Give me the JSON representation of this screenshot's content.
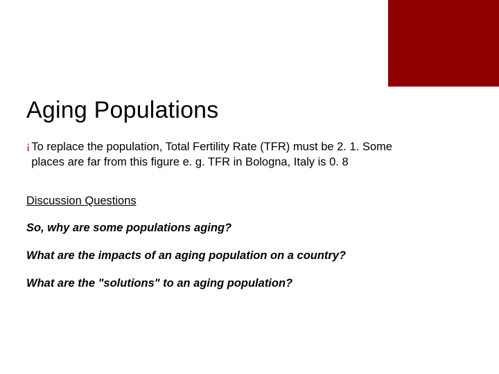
{
  "accent_color": "#8f0000",
  "title": "Aging Populations",
  "bullet_glyph": "¡",
  "bullet_text": "To replace the population, Total Fertility Rate (TFR) must be 2. 1. Some places are far from this figure e. g. TFR in Bologna, Italy is 0. 8",
  "subhead": "Discussion Questions",
  "questions": [
    "So, why are some populations aging?",
    "What are the impacts of an aging population on a country?",
    "What are the \"solutions\" to an aging population?"
  ]
}
